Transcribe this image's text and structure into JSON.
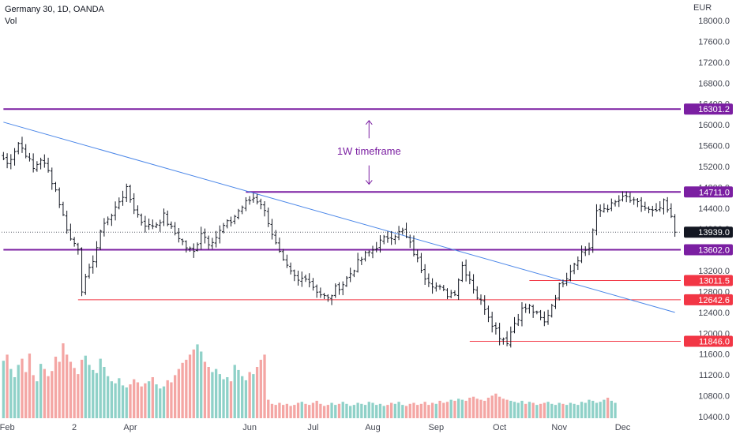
{
  "header": {
    "title": "Germany 30, 1D, OANDA",
    "volume_label": "Vol",
    "currency": "EUR"
  },
  "chart_data": {
    "type": "candlestick",
    "symbol": "Germany 30",
    "interval": "1D",
    "source": "OANDA",
    "currency": "EUR",
    "ylim": [
      10400,
      18000
    ],
    "y_ticks": [
      10400,
      10800,
      11200,
      11600,
      12000,
      12400,
      12800,
      13200,
      13600,
      14000,
      14400,
      14800,
      15200,
      15600,
      16000,
      16400,
      16800,
      17200,
      17600,
      18000
    ],
    "y_tick_labels": [
      "10400.0",
      "10800.0",
      "11200.0",
      "11600.0",
      "12000.0",
      "12400.0",
      "12800.0",
      "13200.0",
      "13600.0",
      "14000.0",
      "14400.0",
      "14800.0",
      "15200.0",
      "15600.0",
      "16000.0",
      "16400.0",
      "16800.0",
      "17200.0",
      "17600.0",
      "18000.0"
    ],
    "x_ticks": [
      {
        "label": "Feb",
        "index": 1
      },
      {
        "label": "2",
        "index": 19
      },
      {
        "label": "Apr",
        "index": 34
      },
      {
        "label": "Jun",
        "index": 66
      },
      {
        "label": "Jul",
        "index": 83
      },
      {
        "label": "Aug",
        "index": 99
      },
      {
        "label": "Sep",
        "index": 116
      },
      {
        "label": "Oct",
        "index": 133
      },
      {
        "label": "Nov",
        "index": 149
      },
      {
        "label": "Dec",
        "index": 166
      }
    ],
    "close_path": [
      [
        0,
        15350
      ],
      [
        1,
        15250
      ],
      [
        4,
        15650
      ],
      [
        6,
        15450
      ],
      [
        8,
        15150
      ],
      [
        10,
        15350
      ],
      [
        12,
        15100
      ],
      [
        14,
        14750
      ],
      [
        16,
        14250
      ],
      [
        18,
        13800
      ],
      [
        20,
        13650
      ],
      [
        21,
        12850
      ],
      [
        23,
        13200
      ],
      [
        25,
        13650
      ],
      [
        27,
        14150
      ],
      [
        29,
        14250
      ],
      [
        31,
        14550
      ],
      [
        33,
        14750
      ],
      [
        35,
        14400
      ],
      [
        37,
        14150
      ],
      [
        39,
        14050
      ],
      [
        41,
        14100
      ],
      [
        43,
        14250
      ],
      [
        45,
        14000
      ],
      [
        47,
        13850
      ],
      [
        49,
        13650
      ],
      [
        51,
        13550
      ],
      [
        53,
        13950
      ],
      [
        55,
        13750
      ],
      [
        57,
        13850
      ],
      [
        59,
        14050
      ],
      [
        61,
        14150
      ],
      [
        63,
        14350
      ],
      [
        65,
        14500
      ],
      [
        67,
        14600
      ],
      [
        69,
        14500
      ],
      [
        71,
        14150
      ],
      [
        73,
        13700
      ],
      [
        75,
        13350
      ],
      [
        77,
        13150
      ],
      [
        79,
        13000
      ],
      [
        81,
        13100
      ],
      [
        83,
        12900
      ],
      [
        85,
        12750
      ],
      [
        87,
        12650
      ],
      [
        89,
        12850
      ],
      [
        91,
        12950
      ],
      [
        93,
        13150
      ],
      [
        95,
        13350
      ],
      [
        97,
        13500
      ],
      [
        99,
        13600
      ],
      [
        101,
        13750
      ],
      [
        103,
        13850
      ],
      [
        105,
        13900
      ],
      [
        107,
        13950
      ],
      [
        109,
        13700
      ],
      [
        111,
        13400
      ],
      [
        113,
        13100
      ],
      [
        115,
        12950
      ],
      [
        117,
        12850
      ],
      [
        119,
        12750
      ],
      [
        121,
        12800
      ],
      [
        123,
        13300
      ],
      [
        125,
        13050
      ],
      [
        127,
        12700
      ],
      [
        129,
        12500
      ],
      [
        131,
        12200
      ],
      [
        133,
        11950
      ],
      [
        135,
        11850
      ],
      [
        137,
        12200
      ],
      [
        139,
        12450
      ],
      [
        141,
        12500
      ],
      [
        143,
        12350
      ],
      [
        145,
        12200
      ],
      [
        147,
        12550
      ],
      [
        149,
        12900
      ],
      [
        151,
        13100
      ],
      [
        153,
        13350
      ],
      [
        155,
        13550
      ],
      [
        157,
        13650
      ],
      [
        159,
        14300
      ],
      [
        161,
        14400
      ],
      [
        163,
        14450
      ],
      [
        165,
        14550
      ],
      [
        167,
        14600
      ],
      [
        169,
        14500
      ],
      [
        171,
        14450
      ],
      [
        173,
        14350
      ],
      [
        175,
        14300
      ],
      [
        177,
        14500
      ],
      [
        179,
        14200
      ],
      [
        180,
        13939
      ]
    ],
    "volume_axis": [
      0,
      100
    ],
    "volume": [
      [
        56,
        38
      ],
      [
        62,
        32
      ],
      [
        48,
        30
      ],
      [
        40,
        28
      ],
      [
        52,
        26
      ],
      [
        58,
        30
      ],
      [
        45,
        34
      ],
      [
        63,
        31
      ],
      [
        42,
        27
      ],
      [
        36,
        25
      ],
      [
        53,
        28
      ],
      [
        48,
        33
      ],
      [
        41,
        30
      ],
      [
        46,
        27
      ],
      [
        60,
        36
      ],
      [
        55,
        41
      ],
      [
        73,
        46
      ],
      [
        62,
        39
      ],
      [
        55,
        36
      ],
      [
        49,
        31
      ],
      [
        43,
        29
      ],
      [
        57,
        34
      ],
      [
        61,
        40
      ],
      [
        52,
        35
      ],
      [
        47,
        30
      ],
      [
        44,
        28
      ],
      [
        58,
        27
      ],
      [
        50,
        31
      ],
      [
        41,
        26
      ],
      [
        36,
        24
      ],
      [
        34,
        23
      ],
      [
        39,
        24
      ],
      [
        32,
        22
      ],
      [
        30,
        21
      ],
      [
        33,
        23
      ],
      [
        38,
        24
      ],
      [
        35,
        22
      ],
      [
        31,
        20
      ],
      [
        34,
        21
      ],
      [
        36,
        24
      ],
      [
        40,
        25
      ],
      [
        33,
        22
      ],
      [
        29,
        21
      ],
      [
        31,
        20
      ],
      [
        37,
        23
      ],
      [
        35,
        22
      ],
      [
        42,
        27
      ],
      [
        48,
        30
      ],
      [
        54,
        33
      ],
      [
        57,
        37
      ],
      [
        62,
        40
      ],
      [
        67,
        43
      ],
      [
        72,
        46
      ],
      [
        65,
        39
      ],
      [
        55,
        35
      ],
      [
        50,
        31
      ],
      [
        45,
        29
      ],
      [
        48,
        30
      ],
      [
        43,
        27
      ],
      [
        38,
        25
      ],
      [
        40,
        26
      ],
      [
        36,
        24
      ],
      [
        52,
        33
      ],
      [
        47,
        30
      ],
      [
        41,
        27
      ],
      [
        37,
        24
      ],
      [
        45,
        28
      ],
      [
        43,
        27
      ],
      [
        50,
        33
      ],
      [
        57,
        36
      ],
      [
        62,
        40
      ],
      [
        18,
        12
      ],
      [
        14,
        10
      ],
      [
        13,
        10
      ],
      [
        15,
        11
      ],
      [
        13,
        9
      ],
      [
        14,
        10
      ],
      [
        12,
        9
      ],
      [
        13,
        10
      ],
      [
        15,
        11
      ],
      [
        16,
        11
      ],
      [
        14,
        10
      ],
      [
        13,
        9
      ],
      [
        15,
        11
      ],
      [
        17,
        12
      ],
      [
        14,
        10
      ],
      [
        12,
        9
      ],
      [
        13,
        10
      ],
      [
        15,
        11
      ],
      [
        13,
        10
      ],
      [
        14,
        10
      ],
      [
        16,
        12
      ],
      [
        14,
        10
      ],
      [
        12,
        9
      ],
      [
        13,
        10
      ],
      [
        15,
        11
      ],
      [
        14,
        10
      ],
      [
        13,
        9
      ],
      [
        16,
        11
      ],
      [
        15,
        10
      ],
      [
        13,
        10
      ],
      [
        14,
        11
      ],
      [
        12,
        9
      ],
      [
        13,
        10
      ],
      [
        15,
        11
      ],
      [
        14,
        10
      ],
      [
        16,
        12
      ],
      [
        13,
        9
      ],
      [
        12,
        9
      ],
      [
        14,
        10
      ],
      [
        15,
        11
      ],
      [
        13,
        10
      ],
      [
        14,
        11
      ],
      [
        16,
        12
      ],
      [
        13,
        9
      ],
      [
        15,
        11
      ],
      [
        14,
        10
      ],
      [
        17,
        12
      ],
      [
        15,
        11
      ],
      [
        16,
        12
      ],
      [
        18,
        13
      ],
      [
        17,
        12
      ],
      [
        19,
        14
      ],
      [
        18,
        13
      ],
      [
        17,
        12
      ],
      [
        20,
        14
      ],
      [
        21,
        15
      ],
      [
        19,
        14
      ],
      [
        18,
        13
      ],
      [
        17,
        12
      ],
      [
        20,
        15
      ],
      [
        22,
        16
      ],
      [
        24,
        17
      ],
      [
        21,
        15
      ],
      [
        19,
        14
      ],
      [
        18,
        13
      ],
      [
        17,
        12
      ],
      [
        16,
        12
      ],
      [
        15,
        11
      ],
      [
        17,
        12
      ],
      [
        14,
        10
      ],
      [
        16,
        11
      ],
      [
        15,
        10
      ],
      [
        13,
        9
      ],
      [
        14,
        10
      ],
      [
        15,
        11
      ],
      [
        16,
        12
      ],
      [
        14,
        10
      ],
      [
        13,
        9
      ],
      [
        15,
        11
      ],
      [
        14,
        10
      ],
      [
        13,
        10
      ],
      [
        15,
        11
      ],
      [
        14,
        10
      ],
      [
        13,
        9
      ],
      [
        16,
        12
      ],
      [
        15,
        11
      ],
      [
        18,
        13
      ],
      [
        17,
        12
      ],
      [
        15,
        11
      ],
      [
        16,
        12
      ],
      [
        18,
        13
      ],
      [
        20,
        14
      ],
      [
        17,
        12
      ],
      [
        15,
        11
      ]
    ],
    "horizontal_levels": [
      {
        "price": 16301.2,
        "label": "16301.2",
        "color": "#7b1fa2",
        "style": "thick",
        "start_index": 0
      },
      {
        "price": 14711.0,
        "label": "14711.0",
        "color": "#7b1fa2",
        "style": "thick",
        "start_index": 65
      },
      {
        "price": 13602.0,
        "label": "13602.0",
        "color": "#7b1fa2",
        "style": "thick",
        "start_index": 0
      },
      {
        "price": 13011.5,
        "label": "13011.5",
        "color": "#f23645",
        "style": "thin",
        "start_index": 141
      },
      {
        "price": 12642.6,
        "label": "12642.6",
        "color": "#f23645",
        "style": "thin",
        "start_index": 20
      },
      {
        "price": 11846.0,
        "label": "11846.0",
        "color": "#f23645",
        "style": "thin",
        "start_index": 125
      }
    ],
    "current_price": {
      "price": 13939.0,
      "label": "13939.0",
      "color": "#131722"
    },
    "trendline": {
      "from": [
        0,
        16050
      ],
      "to": [
        180,
        12400
      ],
      "color": "#4a86e8"
    },
    "annotation": {
      "text": "1W timeframe",
      "color": "#7b1fa2",
      "index": 98,
      "price": 15500
    },
    "arrows": [
      {
        "index": 98,
        "from": 15740,
        "to": 16080,
        "direction": "up"
      },
      {
        "index": 98,
        "from": 15220,
        "to": 14860,
        "direction": "down"
      }
    ],
    "colors": {
      "up": "#26a69a",
      "down": "#ef5350",
      "volume_up": "#8fd1c8",
      "volume_down": "#f4a6a4",
      "bar": "#131722"
    }
  }
}
